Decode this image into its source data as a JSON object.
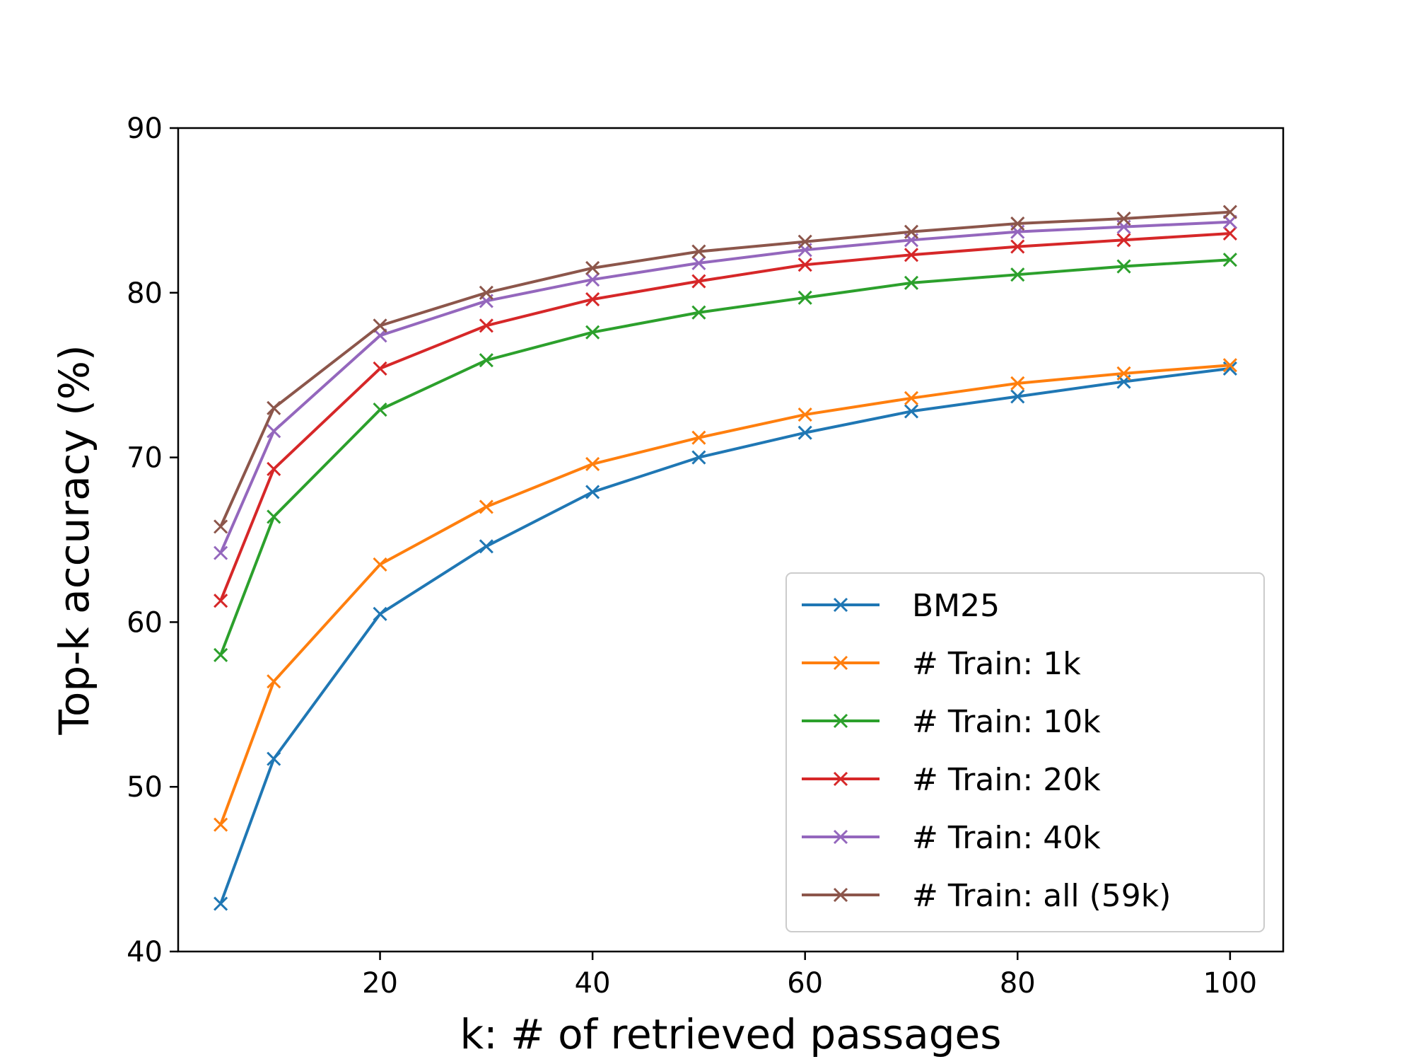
{
  "chart_data": {
    "type": "line",
    "title": "",
    "xlabel": "k: # of retrieved passages",
    "ylabel": "Top-k accuracy (%)",
    "xlim": [
      1,
      105
    ],
    "ylim": [
      40,
      90
    ],
    "xticks": [
      20,
      40,
      60,
      80,
      100
    ],
    "yticks": [
      40,
      50,
      60,
      70,
      80,
      90
    ],
    "grid": false,
    "legend_position": "lower-right",
    "marker": "x",
    "x": [
      5,
      10,
      20,
      30,
      40,
      50,
      60,
      70,
      80,
      90,
      100
    ],
    "series": [
      {
        "name": "BM25",
        "color": "#1f77b4",
        "values": [
          42.9,
          51.7,
          60.5,
          64.6,
          67.9,
          70.0,
          71.5,
          72.8,
          73.7,
          74.6,
          75.4
        ]
      },
      {
        "name": "# Train: 1k",
        "color": "#ff7f0e",
        "values": [
          47.7,
          56.4,
          63.5,
          67.0,
          69.6,
          71.2,
          72.6,
          73.6,
          74.5,
          75.1,
          75.6
        ]
      },
      {
        "name": "# Train: 10k",
        "color": "#2ca02c",
        "values": [
          58.0,
          66.4,
          72.9,
          75.9,
          77.6,
          78.8,
          79.7,
          80.6,
          81.1,
          81.6,
          82.0
        ]
      },
      {
        "name": "# Train: 20k",
        "color": "#d62728",
        "values": [
          61.3,
          69.3,
          75.4,
          78.0,
          79.6,
          80.7,
          81.7,
          82.3,
          82.8,
          83.2,
          83.6
        ]
      },
      {
        "name": "# Train: 40k",
        "color": "#9467bd",
        "values": [
          64.2,
          71.6,
          77.4,
          79.5,
          80.8,
          81.8,
          82.6,
          83.2,
          83.7,
          84.0,
          84.3
        ]
      },
      {
        "name": "# Train: all (59k)",
        "color": "#8c564b",
        "values": [
          65.8,
          73.0,
          78.0,
          80.0,
          81.5,
          82.5,
          83.1,
          83.7,
          84.2,
          84.5,
          84.9
        ]
      }
    ]
  }
}
